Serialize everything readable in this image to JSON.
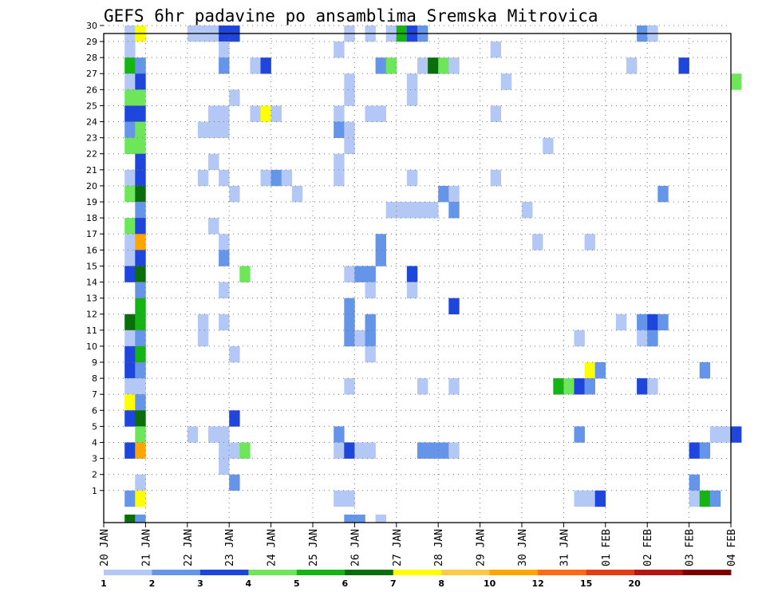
{
  "chart_data": {
    "type": "heatmap",
    "title": "GEFS 6hr padavine po ansamblima Sremska Mitrovica",
    "x_start": "2025-01-20 00Z",
    "x_tick_labels": [
      "20 JAN",
      "21 JAN",
      "22 JAN",
      "23 JAN",
      "24 JAN",
      "25 JAN",
      "26 JAN",
      "27 JAN",
      "28 JAN",
      "29 JAN",
      "30 JAN",
      "31 JAN",
      "01 FEB",
      "02 FEB",
      "03 FEB",
      "04 FEB"
    ],
    "y_tick_labels": [
      "1",
      "2",
      "3",
      "4",
      "5",
      "6",
      "7",
      "8",
      "9",
      "10",
      "11",
      "12",
      "13",
      "14",
      "15",
      "16",
      "17",
      "18",
      "19",
      "20",
      "21",
      "22",
      "23",
      "24",
      "25",
      "26",
      "27",
      "28",
      "29",
      "30"
    ],
    "ylim": [
      0,
      30
    ],
    "legend": {
      "colors": [
        "#b4c8f5",
        "#6495e8",
        "#1e46dc",
        "#6ee65a",
        "#14b414",
        "#0a6e0a",
        "#ffff00",
        "#ffc846",
        "#ffa500",
        "#ff6a14",
        "#e63c14",
        "#b41414",
        "#7d0000"
      ],
      "labels": [
        "1",
        "2",
        "3",
        "4",
        "5",
        "6",
        "7",
        "8",
        "10",
        "12",
        "15",
        "20"
      ]
    },
    "cells": [
      [
        2,
        30,
        0
      ],
      [
        2,
        29,
        0
      ],
      [
        2,
        28,
        4
      ],
      [
        2,
        27,
        0
      ],
      [
        2,
        26,
        3
      ],
      [
        2,
        25,
        2
      ],
      [
        2,
        24,
        1
      ],
      [
        2,
        23,
        3
      ],
      [
        2,
        21,
        0
      ],
      [
        2,
        20,
        3
      ],
      [
        2,
        18,
        3
      ],
      [
        2,
        17,
        0
      ],
      [
        2,
        16,
        0
      ],
      [
        2,
        15,
        2
      ],
      [
        2,
        12,
        5
      ],
      [
        2,
        11,
        0
      ],
      [
        2,
        10,
        2
      ],
      [
        2,
        9,
        2
      ],
      [
        2,
        8,
        0
      ],
      [
        2,
        7,
        6
      ],
      [
        2,
        6,
        2
      ],
      [
        2,
        4,
        2
      ],
      [
        2,
        1,
        1
      ],
      [
        2,
        0,
        5
      ],
      [
        3,
        30,
        6
      ],
      [
        3,
        28,
        1
      ],
      [
        3,
        27,
        2
      ],
      [
        3,
        26,
        3
      ],
      [
        3,
        25,
        2
      ],
      [
        3,
        24,
        3
      ],
      [
        3,
        23,
        3
      ],
      [
        3,
        22,
        2
      ],
      [
        3,
        21,
        2
      ],
      [
        3,
        20,
        5
      ],
      [
        3,
        19,
        1
      ],
      [
        3,
        18,
        2
      ],
      [
        3,
        17,
        8
      ],
      [
        3,
        16,
        2
      ],
      [
        3,
        15,
        5
      ],
      [
        3,
        14,
        1
      ],
      [
        3,
        13,
        4
      ],
      [
        3,
        12,
        4
      ],
      [
        3,
        11,
        1
      ],
      [
        3,
        10,
        4
      ],
      [
        3,
        9,
        1
      ],
      [
        3,
        8,
        0
      ],
      [
        3,
        7,
        1
      ],
      [
        3,
        6,
        5
      ],
      [
        3,
        5,
        3
      ],
      [
        3,
        4,
        8
      ],
      [
        3,
        2,
        0
      ],
      [
        3,
        1,
        6
      ],
      [
        3,
        0,
        1
      ],
      [
        8,
        30,
        0
      ],
      [
        8,
        5,
        0
      ],
      [
        9,
        30,
        0
      ],
      [
        9,
        24,
        0
      ],
      [
        9,
        21,
        0
      ],
      [
        9,
        12,
        0
      ],
      [
        9,
        11,
        0
      ],
      [
        10,
        30,
        0
      ],
      [
        10,
        25,
        0
      ],
      [
        10,
        24,
        0
      ],
      [
        10,
        22,
        0
      ],
      [
        10,
        18,
        0
      ],
      [
        10,
        5,
        0
      ],
      [
        11,
        30,
        2
      ],
      [
        11,
        29,
        0
      ],
      [
        11,
        28,
        1
      ],
      [
        11,
        25,
        0
      ],
      [
        11,
        24,
        0
      ],
      [
        11,
        21,
        0
      ],
      [
        11,
        17,
        0
      ],
      [
        11,
        16,
        1
      ],
      [
        11,
        14,
        0
      ],
      [
        11,
        12,
        0
      ],
      [
        11,
        5,
        0
      ],
      [
        11,
        4,
        0
      ],
      [
        11,
        3,
        0
      ],
      [
        12,
        30,
        2
      ],
      [
        12,
        26,
        0
      ],
      [
        12,
        20,
        0
      ],
      [
        12,
        10,
        0
      ],
      [
        12,
        6,
        2
      ],
      [
        12,
        4,
        0
      ],
      [
        12,
        2,
        1
      ],
      [
        13,
        15,
        3
      ],
      [
        13,
        4,
        3
      ],
      [
        14,
        28,
        0
      ],
      [
        14,
        25,
        0
      ],
      [
        15,
        28,
        2
      ],
      [
        15,
        25,
        6
      ],
      [
        15,
        21,
        0
      ],
      [
        16,
        25,
        0
      ],
      [
        16,
        21,
        1
      ],
      [
        17,
        21,
        0
      ],
      [
        18,
        20,
        0
      ],
      [
        22,
        29,
        0
      ],
      [
        22,
        25,
        0
      ],
      [
        22,
        24,
        1
      ],
      [
        22,
        22,
        0
      ],
      [
        22,
        21,
        0
      ],
      [
        22,
        5,
        1
      ],
      [
        22,
        4,
        0
      ],
      [
        22,
        1,
        0
      ],
      [
        23,
        30,
        0
      ],
      [
        23,
        27,
        0
      ],
      [
        23,
        26,
        0
      ],
      [
        23,
        24,
        0
      ],
      [
        23,
        23,
        0
      ],
      [
        23,
        15,
        0
      ],
      [
        23,
        13,
        1
      ],
      [
        23,
        12,
        1
      ],
      [
        23,
        11,
        1
      ],
      [
        23,
        8,
        0
      ],
      [
        23,
        4,
        2
      ],
      [
        23,
        1,
        0
      ],
      [
        23,
        0,
        1
      ],
      [
        24,
        15,
        1
      ],
      [
        24,
        11,
        0
      ],
      [
        24,
        4,
        0
      ],
      [
        24,
        0,
        1
      ],
      [
        25,
        30,
        0
      ],
      [
        25,
        25,
        0
      ],
      [
        25,
        15,
        1
      ],
      [
        25,
        14,
        0
      ],
      [
        25,
        12,
        1
      ],
      [
        25,
        11,
        1
      ],
      [
        25,
        10,
        0
      ],
      [
        25,
        4,
        0
      ],
      [
        26,
        28,
        1
      ],
      [
        26,
        25,
        0
      ],
      [
        26,
        17,
        1
      ],
      [
        26,
        16,
        1
      ],
      [
        26,
        0,
        0
      ],
      [
        27,
        30,
        0
      ],
      [
        27,
        28,
        3
      ],
      [
        27,
        19,
        0
      ],
      [
        28,
        30,
        4
      ],
      [
        28,
        19,
        0
      ],
      [
        29,
        30,
        2
      ],
      [
        29,
        27,
        0
      ],
      [
        29,
        26,
        0
      ],
      [
        29,
        21,
        0
      ],
      [
        29,
        19,
        0
      ],
      [
        29,
        15,
        2
      ],
      [
        29,
        14,
        0
      ],
      [
        30,
        30,
        1
      ],
      [
        30,
        28,
        0
      ],
      [
        30,
        19,
        0
      ],
      [
        30,
        8,
        0
      ],
      [
        30,
        4,
        1
      ],
      [
        31,
        28,
        5
      ],
      [
        31,
        19,
        0
      ],
      [
        31,
        4,
        1
      ],
      [
        32,
        28,
        3
      ],
      [
        32,
        20,
        1
      ],
      [
        32,
        4,
        1
      ],
      [
        33,
        28,
        0
      ],
      [
        33,
        20,
        0
      ],
      [
        33,
        19,
        1
      ],
      [
        33,
        13,
        2
      ],
      [
        33,
        8,
        0
      ],
      [
        33,
        4,
        0
      ],
      [
        37,
        29,
        0
      ],
      [
        37,
        25,
        0
      ],
      [
        37,
        21,
        0
      ],
      [
        38,
        27,
        0
      ],
      [
        40,
        19,
        0
      ],
      [
        41,
        17,
        0
      ],
      [
        42,
        23,
        0
      ],
      [
        43,
        8,
        4
      ],
      [
        44,
        8,
        3
      ],
      [
        45,
        11,
        0
      ],
      [
        45,
        8,
        2
      ],
      [
        45,
        5,
        1
      ],
      [
        45,
        1,
        0
      ],
      [
        46,
        17,
        0
      ],
      [
        46,
        9,
        6
      ],
      [
        46,
        8,
        1
      ],
      [
        46,
        1,
        0
      ],
      [
        47,
        9,
        1
      ],
      [
        47,
        1,
        2
      ],
      [
        49,
        12,
        0
      ],
      [
        50,
        28,
        0
      ],
      [
        51,
        30,
        1
      ],
      [
        51,
        12,
        1
      ],
      [
        51,
        11,
        0
      ],
      [
        51,
        8,
        2
      ],
      [
        52,
        30,
        0
      ],
      [
        52,
        12,
        2
      ],
      [
        52,
        11,
        1
      ],
      [
        52,
        8,
        0
      ],
      [
        53,
        20,
        1
      ],
      [
        53,
        12,
        1
      ],
      [
        55,
        28,
        2
      ],
      [
        56,
        4,
        2
      ],
      [
        56,
        2,
        1
      ],
      [
        56,
        1,
        0
      ],
      [
        57,
        9,
        1
      ],
      [
        57,
        4,
        1
      ],
      [
        57,
        1,
        4
      ],
      [
        58,
        5,
        0
      ],
      [
        58,
        1,
        1
      ],
      [
        59,
        5,
        0
      ],
      [
        60,
        27,
        3
      ],
      [
        60,
        5,
        2
      ]
    ]
  }
}
